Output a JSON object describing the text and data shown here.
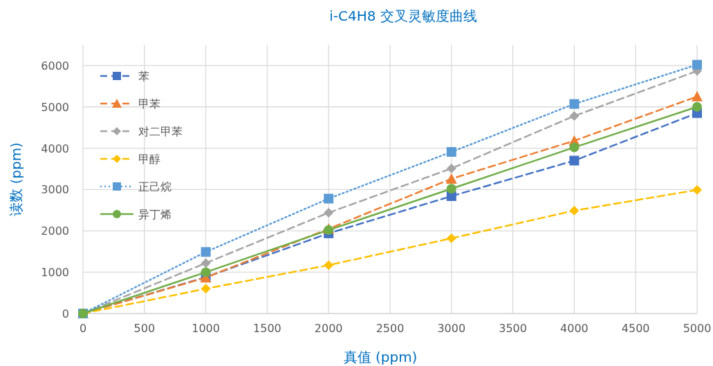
{
  "chart_data": {
    "type": "line",
    "title": "i-C4H8 交叉灵敏度曲线",
    "xlabel": "真值 (ppm)",
    "ylabel": "读数 (ppm)",
    "x": [
      0,
      1000,
      2000,
      3000,
      4000,
      5000
    ],
    "xlim": [
      0,
      5000
    ],
    "xticks": [
      0,
      500,
      1000,
      1500,
      2000,
      2500,
      3000,
      3500,
      4000,
      4500,
      5000
    ],
    "ylim": [
      0,
      6500
    ],
    "yticks": [
      0,
      1000,
      2000,
      3000,
      4000,
      5000,
      6000
    ],
    "grid": true,
    "legend": "top left",
    "series": [
      {
        "name": "苯",
        "color": "#4472c4",
        "marker": "square",
        "line_style": "dashed",
        "values": [
          0,
          880,
          1940,
          2840,
          3700,
          4850
        ]
      },
      {
        "name": "甲苯",
        "color": "#ed7d31",
        "marker": "triangle",
        "line_style": "dashed",
        "values": [
          0,
          870,
          2050,
          3260,
          4180,
          5250
        ]
      },
      {
        "name": "对二甲苯",
        "color": "#a5a5a5",
        "marker": "diamond",
        "line_style": "dashed",
        "values": [
          0,
          1220,
          2440,
          3510,
          4780,
          5870
        ]
      },
      {
        "name": "甲醇",
        "color": "#ffc000",
        "marker": "diamond",
        "line_style": "dashed",
        "values": [
          0,
          600,
          1170,
          1820,
          2490,
          2990
        ]
      },
      {
        "name": "正己烷",
        "color": "#5b9bd5",
        "marker": "square",
        "line_style": "dotted",
        "values": [
          0,
          1490,
          2780,
          3910,
          5070,
          6020
        ]
      },
      {
        "name": "异丁烯",
        "color": "#70ad47",
        "marker": "circle",
        "line_style": "solid",
        "values": [
          0,
          1000,
          2020,
          3020,
          4020,
          5000
        ]
      }
    ]
  }
}
